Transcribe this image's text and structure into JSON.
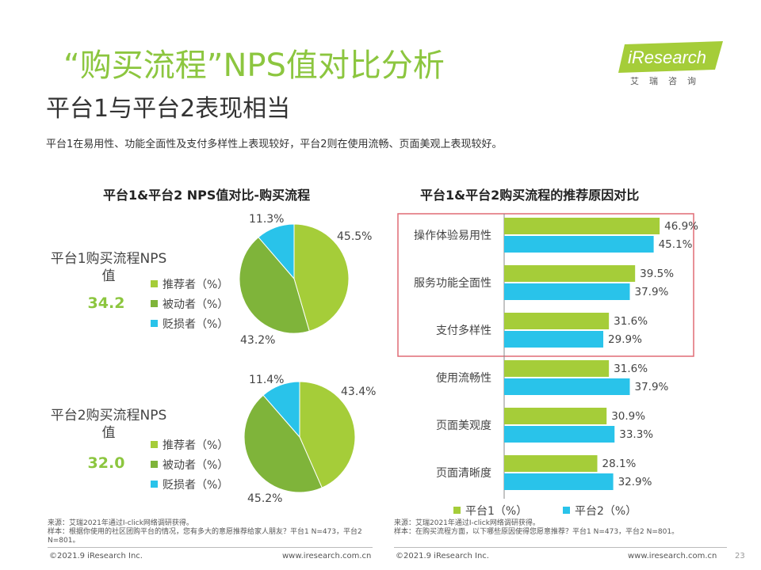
{
  "header": {
    "title_line1": "“购买流程”NPS值对比分析",
    "title_line2": "平台1与平台2表现相当",
    "summary": "平台1在易用性、功能全面性及支付多样性上表现较好，平台2则在使用流畅、页面美观上表现较好。",
    "logo_text": "iResearch",
    "logo_sub": "艾瑞咨询"
  },
  "colors": {
    "green": "#a5cd39",
    "olive": "#7fb43a",
    "cyan": "#29c3ea",
    "highlight": "#e06c75"
  },
  "left_chart_title": "平台1&平台2 NPS值对比-购买流程",
  "right_chart_title": "平台1&平台2购买流程的推荐原因对比",
  "nps": [
    {
      "label": "平台1购买流程NPS值",
      "value": "34.2"
    },
    {
      "label": "平台2购买流程NPS值",
      "value": "32.0"
    }
  ],
  "pie_legend": [
    "推荐者（%）",
    "被动者（%）",
    "贬损者（%）"
  ],
  "bar_legend": [
    "平台1（%）",
    "平台2（%）"
  ],
  "chart_data": [
    {
      "type": "pie",
      "title": "平台1购买流程",
      "labels": [
        "推荐者（%）",
        "被动者（%）",
        "贬损者（%）"
      ],
      "values": [
        45.5,
        43.2,
        11.3
      ],
      "value_labels": [
        "45.5%",
        "43.2%",
        "11.3%"
      ]
    },
    {
      "type": "pie",
      "title": "平台2购买流程",
      "labels": [
        "推荐者（%）",
        "被动者（%）",
        "贬损者（%）"
      ],
      "values": [
        43.4,
        45.2,
        11.4
      ],
      "value_labels": [
        "43.4%",
        "45.2%",
        "11.4%"
      ]
    },
    {
      "type": "bar",
      "orientation": "horizontal",
      "title": "平台1&平台2购买流程的推荐原因对比",
      "categories": [
        "操作体验易用性",
        "服务功能全面性",
        "支付多样性",
        "使用流畅性",
        "页面美观度",
        "页面清晰度"
      ],
      "series": [
        {
          "name": "平台1（%）",
          "values": [
            46.9,
            39.5,
            31.6,
            31.6,
            30.9,
            28.1
          ],
          "value_labels": [
            "46.9%",
            "39.5%",
            "31.6%",
            "31.6%",
            "30.9%",
            "28.1%"
          ]
        },
        {
          "name": "平台2（%）",
          "values": [
            45.1,
            37.9,
            29.9,
            37.9,
            33.3,
            32.9
          ],
          "value_labels": [
            "45.1%",
            "37.9%",
            "29.9%",
            "37.9%",
            "33.3%",
            "32.9%"
          ]
        }
      ],
      "xlim": [
        0,
        55
      ],
      "highlighted_categories": 3
    }
  ],
  "notes": {
    "left_source": "来源：艾瑞2021年通过I-click网络调研获得。",
    "left_sample": "样本：根据你使用的社区团购平台的情况，您有多大的意愿推荐给家人朋友？平台1 N=473，平台2 N=801。",
    "right_source": "来源：艾瑞2021年通过I-click网络调研获得。",
    "right_sample": "样本：在购买流程方面，以下哪些原因使得您愿意推荐？平台1 N=473，平台2 N=801。"
  },
  "footer": {
    "copyright_left": "©2021.9 iResearch Inc.",
    "url_left": "www.iresearch.com.cn",
    "copyright_right": "©2021.9 iResearch Inc.",
    "url_right": "www.iresearch.com.cn",
    "page_number": "23"
  }
}
